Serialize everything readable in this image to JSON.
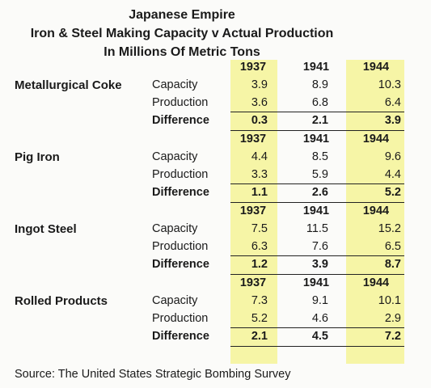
{
  "title_lines": [
    "Japanese Empire",
    "Iron & Steel Making Capacity v Actual Production",
    "In Millions Of Metric Tons"
  ],
  "years": [
    "1937",
    "1941",
    "1944"
  ],
  "highlight_color": "#f6f5a6",
  "sections": [
    {
      "name": "Metallurgical Coke",
      "rows": [
        {
          "label": "Capacity",
          "values": [
            "3.9",
            "8.9",
            "10.3"
          ]
        },
        {
          "label": "Production",
          "values": [
            "3.6",
            "6.8",
            "6.4"
          ]
        },
        {
          "label": "Difference",
          "values": [
            "0.3",
            "2.1",
            "3.9"
          ]
        }
      ]
    },
    {
      "name": "Pig Iron",
      "rows": [
        {
          "label": "Capacity",
          "values": [
            "4.4",
            "8.5",
            "9.6"
          ]
        },
        {
          "label": "Production",
          "values": [
            "3.3",
            "5.9",
            "4.4"
          ]
        },
        {
          "label": "Difference",
          "values": [
            "1.1",
            "2.6",
            "5.2"
          ]
        }
      ]
    },
    {
      "name": "Ingot Steel",
      "rows": [
        {
          "label": "Capacity",
          "values": [
            "7.5",
            "11.5",
            "15.2"
          ]
        },
        {
          "label": "Production",
          "values": [
            "6.3",
            "7.6",
            "6.5"
          ]
        },
        {
          "label": "Difference",
          "values": [
            "1.2",
            "3.9",
            "8.7"
          ]
        }
      ]
    },
    {
      "name": "Rolled Products",
      "rows": [
        {
          "label": "Capacity",
          "values": [
            "7.3",
            "9.1",
            "10.1"
          ]
        },
        {
          "label": "Production",
          "values": [
            "5.2",
            "4.6",
            "2.9"
          ]
        },
        {
          "label": "Difference",
          "values": [
            "2.1",
            "4.5",
            "7.2"
          ]
        }
      ]
    }
  ],
  "source": "Source: The United States Strategic Bombing Survey"
}
